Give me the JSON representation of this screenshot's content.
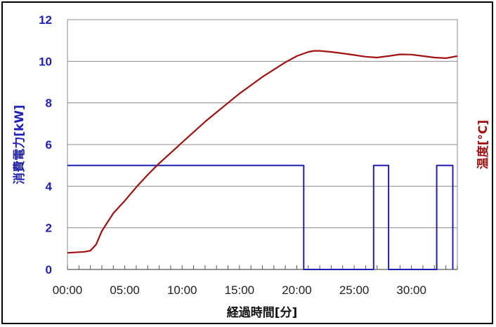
{
  "chart_data": {
    "type": "line",
    "title": "",
    "xlabel": "経過時間[分]",
    "ylabel_left": "消費電力[kW]",
    "ylabel_right": "温度[°C]",
    "xlim": [
      0,
      34
    ],
    "ylim": [
      0,
      12
    ],
    "x_ticks": [
      "00:00",
      "05:00",
      "10:00",
      "15:00",
      "20:00",
      "25:00",
      "30:00"
    ],
    "x_tick_values": [
      0,
      5,
      10,
      15,
      20,
      25,
      30
    ],
    "y_ticks": [
      "0",
      "2",
      "4",
      "6",
      "8",
      "10",
      "12"
    ],
    "y_tick_values": [
      0,
      2,
      4,
      6,
      8,
      10,
      12
    ],
    "grid": "horizontal",
    "colors": {
      "power": "#1f1fb4",
      "temperature": "#a01010",
      "grid": "#8c8c8c"
    },
    "series": [
      {
        "axis": "left",
        "color": "#1f1fb4",
        "x": [
          0,
          20.6,
          20.6,
          26.7,
          26.7,
          28.0,
          28.0,
          32.2,
          32.2,
          33.6,
          33.6
        ],
        "y": [
          5,
          5,
          0,
          0,
          5,
          5,
          0,
          0,
          5,
          5,
          0
        ]
      },
      {
        "axis": "right",
        "color": "#a01010",
        "x": [
          0,
          1.5,
          2.0,
          2.5,
          3.0,
          4.0,
          5.0,
          6.0,
          7.0,
          8.0,
          9.0,
          10.0,
          11.0,
          12.0,
          13.0,
          14.0,
          15.0,
          16.0,
          17.0,
          18.0,
          19.0,
          20.0,
          21.0,
          21.5,
          22.0,
          23.0,
          24.0,
          25.0,
          26.0,
          27.0,
          28.0,
          29.0,
          30.0,
          31.0,
          32.0,
          33.0,
          34.0
        ],
        "y": [
          0.8,
          0.85,
          0.9,
          1.2,
          1.85,
          2.7,
          3.3,
          3.95,
          4.55,
          5.1,
          5.6,
          6.1,
          6.6,
          7.1,
          7.55,
          8.0,
          8.45,
          8.85,
          9.25,
          9.6,
          9.95,
          10.25,
          10.45,
          10.5,
          10.5,
          10.45,
          10.38,
          10.3,
          10.22,
          10.18,
          10.25,
          10.33,
          10.32,
          10.25,
          10.18,
          10.15,
          10.25
        ]
      }
    ]
  }
}
